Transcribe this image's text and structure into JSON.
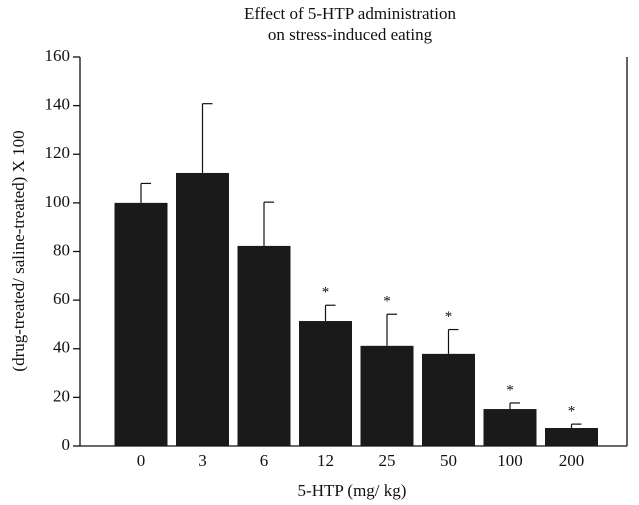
{
  "chart_data": {
    "type": "bar",
    "title": [
      "Effect of 5-HTP administration",
      "on stress-induced eating"
    ],
    "x_label": "5-HTP (mg/ kg)",
    "y_label": "(drug-treated/ saline-treated) X 100",
    "categories": [
      "0",
      "3",
      "6",
      "12",
      "25",
      "50",
      "100",
      "200"
    ],
    "values": [
      100,
      112.3,
      82.3,
      51.4,
      41.2,
      37.9,
      15.2,
      7.4
    ],
    "errors": [
      8,
      28.5,
      18,
      6.5,
      13,
      10,
      2.5,
      1.6
    ],
    "annotations": [
      null,
      null,
      null,
      "*",
      "*",
      "*",
      "*",
      "*"
    ],
    "color": "#1a1a1a",
    "ylim": [
      0,
      160
    ],
    "yticks": [
      0,
      20,
      40,
      60,
      80,
      100,
      120,
      140,
      160
    ],
    "grid": false
  }
}
